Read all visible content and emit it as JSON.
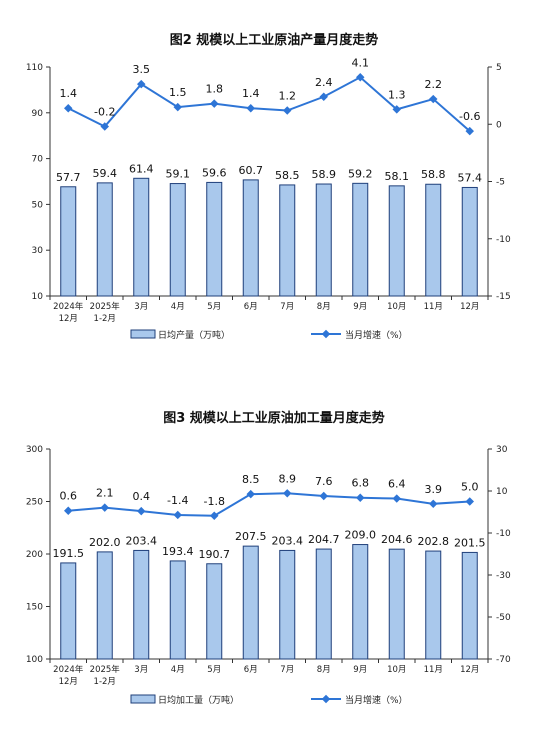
{
  "charts_colors": {
    "bar_fill": "#a9c8ec",
    "bar_stroke": "#1f3f7a",
    "line": "#2e75d6",
    "axis": "#333333"
  },
  "chart_data": [
    {
      "type": "bar+line",
      "title": "图2  规模以上工业原油产量月度走势",
      "categories": [
        [
          "2024年",
          "12月"
        ],
        [
          "2025年",
          "1-2月"
        ],
        [
          "3月"
        ],
        [
          "4月"
        ],
        [
          "5月"
        ],
        [
          "6月"
        ],
        [
          "7月"
        ],
        [
          "8月"
        ],
        [
          "9月"
        ],
        [
          "10月"
        ],
        [
          "11月"
        ],
        [
          "12月"
        ]
      ],
      "series": [
        {
          "name": "日均产量（万吨）",
          "kind": "bar",
          "axis": "left",
          "values": [
            57.7,
            59.4,
            61.4,
            59.1,
            59.6,
            60.7,
            58.5,
            58.9,
            59.2,
            58.1,
            58.8,
            57.4
          ],
          "labels": [
            "57.7",
            "59.4",
            "61.4",
            "59.1",
            "59.6",
            "60.7",
            "58.5",
            "58.9",
            "59.2",
            "58.1",
            "58.8",
            "57.4"
          ]
        },
        {
          "name": "当月增速（%）",
          "kind": "line",
          "axis": "right",
          "values": [
            1.4,
            -0.2,
            3.5,
            1.5,
            1.8,
            1.4,
            1.2,
            2.4,
            4.1,
            1.3,
            2.2,
            -0.6
          ],
          "labels": [
            "1.4",
            "-0.2",
            "3.5",
            "1.5",
            "1.8",
            "1.4",
            "1.2",
            "2.4",
            "4.1",
            "1.3",
            "2.2",
            "-0.6"
          ]
        }
      ],
      "left_axis": {
        "min": 10,
        "max": 110,
        "ticks": [
          "10",
          "30",
          "50",
          "70",
          "90",
          "110"
        ]
      },
      "right_axis": {
        "min": -15,
        "max": 5,
        "ticks": [
          "-15",
          "-10",
          "-5",
          "0",
          "5"
        ]
      },
      "legend": {
        "position": "bottom",
        "bar_label": "日均产量（万吨）",
        "line_label": "当月增速（%）"
      }
    },
    {
      "type": "bar+line",
      "title": "图3  规模以上工业原油加工量月度走势",
      "categories": [
        [
          "2024年",
          "12月"
        ],
        [
          "2025年",
          "1-2月"
        ],
        [
          "3月"
        ],
        [
          "4月"
        ],
        [
          "5月"
        ],
        [
          "6月"
        ],
        [
          "7月"
        ],
        [
          "8月"
        ],
        [
          "9月"
        ],
        [
          "10月"
        ],
        [
          "11月"
        ],
        [
          "12月"
        ]
      ],
      "series": [
        {
          "name": "日均加工量（万吨）",
          "kind": "bar",
          "axis": "left",
          "values": [
            191.5,
            202.0,
            203.4,
            193.4,
            190.7,
            207.5,
            203.4,
            204.7,
            209.0,
            204.6,
            202.8,
            201.5
          ],
          "labels": [
            "191.5",
            "202.0",
            "203.4",
            "193.4",
            "190.7",
            "207.5",
            "203.4",
            "204.7",
            "209.0",
            "204.6",
            "202.8",
            "201.5"
          ]
        },
        {
          "name": "当月增速（%）",
          "kind": "line",
          "axis": "right",
          "values": [
            0.6,
            2.1,
            0.4,
            -1.4,
            -1.8,
            8.5,
            8.9,
            7.6,
            6.8,
            6.4,
            3.9,
            5.0
          ],
          "labels": [
            "0.6",
            "2.1",
            "0.4",
            "-1.4",
            "-1.8",
            "8.5",
            "8.9",
            "7.6",
            "6.8",
            "6.4",
            "3.9",
            "5.0"
          ]
        }
      ],
      "left_axis": {
        "min": 100,
        "max": 300,
        "ticks": [
          "100",
          "150",
          "200",
          "250",
          "300"
        ]
      },
      "right_axis": {
        "min": -70,
        "max": 30,
        "ticks": [
          "-70",
          "-50",
          "-30",
          "-10",
          "10",
          "30"
        ]
      },
      "legend": {
        "position": "bottom",
        "bar_label": "日均加工量（万吨）",
        "line_label": "当月增速（%）"
      }
    }
  ]
}
